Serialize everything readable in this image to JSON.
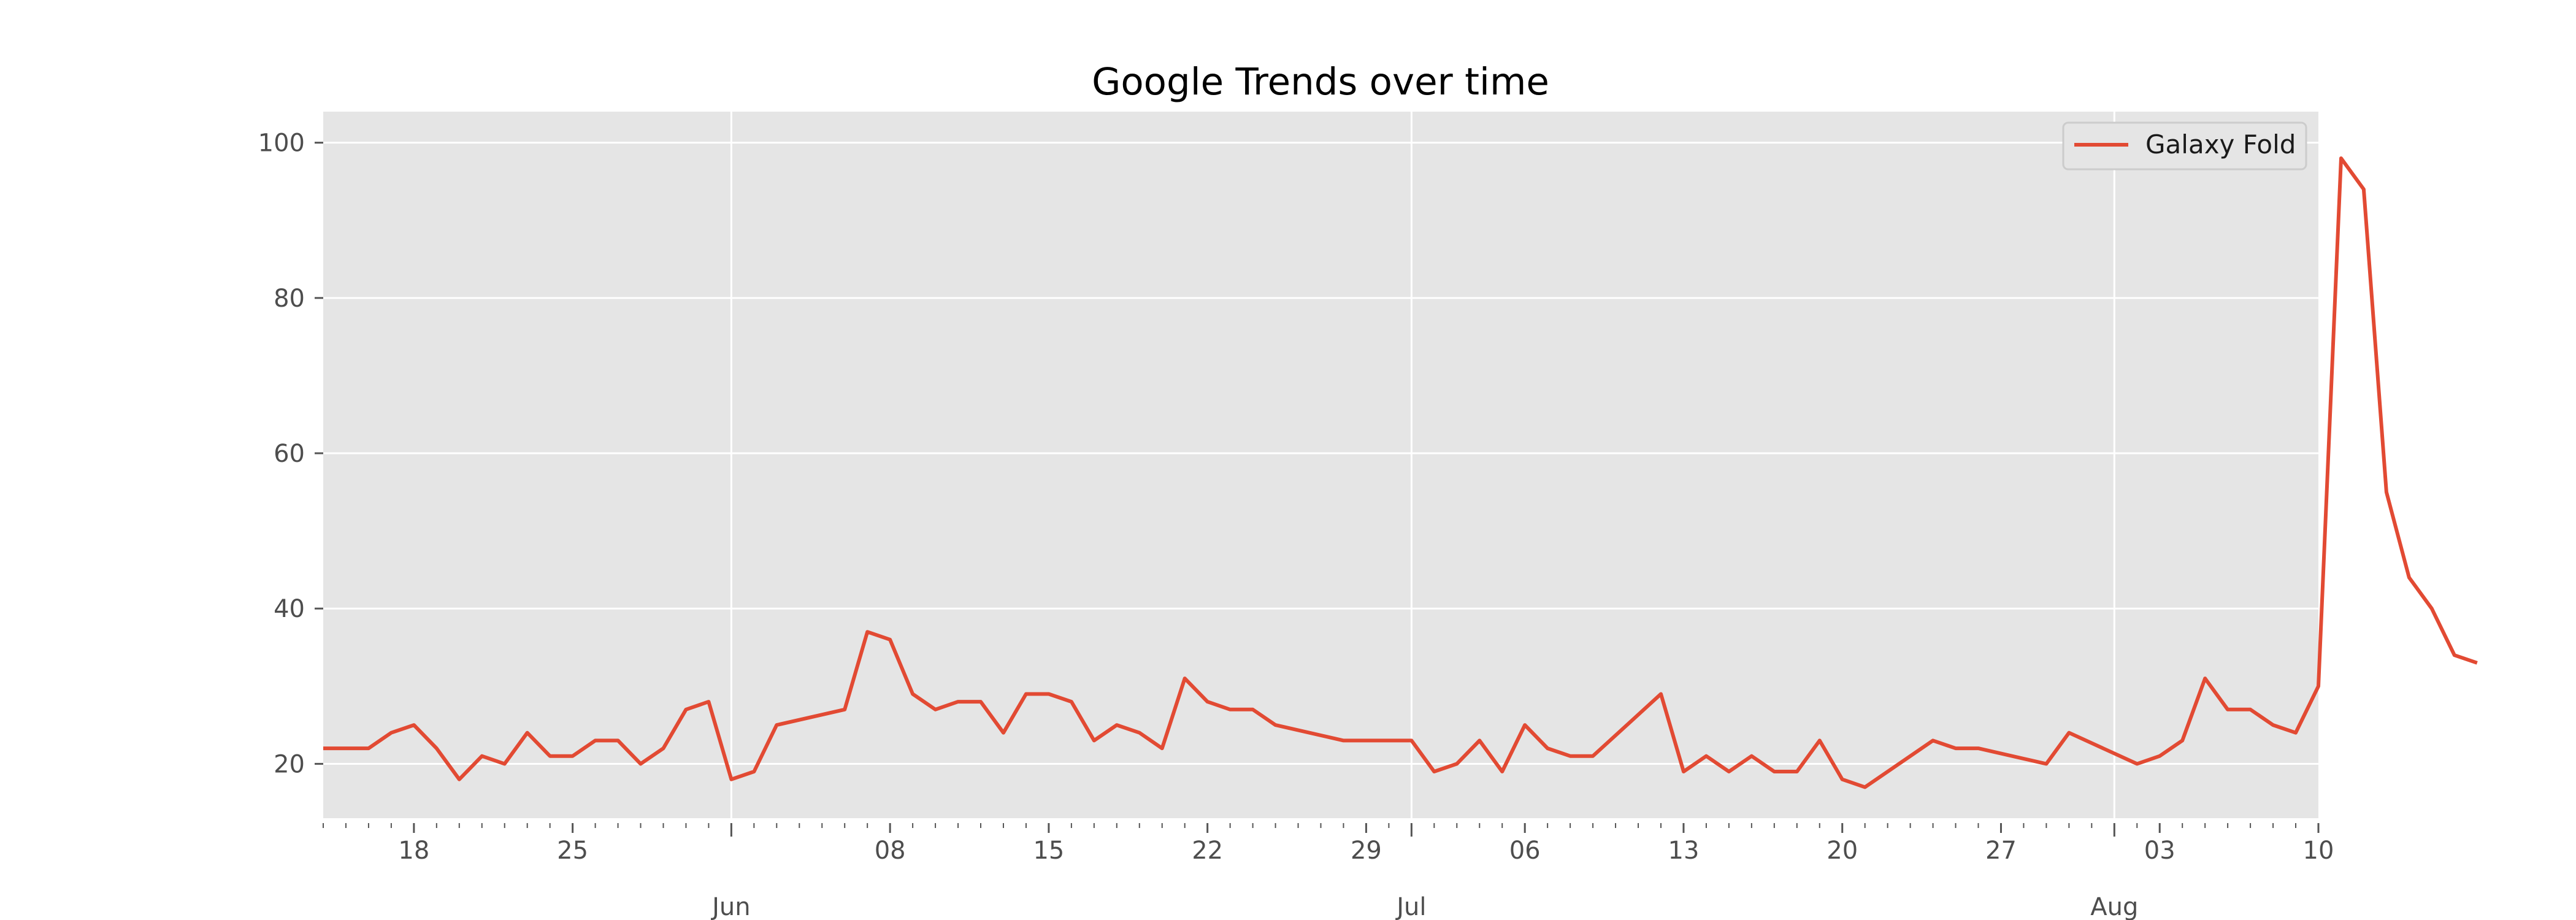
{
  "chart_data": {
    "type": "line",
    "title": "Google Trends over time",
    "xlabel": "",
    "ylabel": "",
    "x_start": "2020-05-14",
    "x_end": "2020-08-10",
    "ylim": [
      13,
      104
    ],
    "y_ticks": [
      20,
      40,
      60,
      80,
      100
    ],
    "x_minor_tick_labels": [
      {
        "date": "2020-05-18",
        "label": "18"
      },
      {
        "date": "2020-05-25",
        "label": "25"
      },
      {
        "date": "2020-06-08",
        "label": "08"
      },
      {
        "date": "2020-06-15",
        "label": "15"
      },
      {
        "date": "2020-06-22",
        "label": "22"
      },
      {
        "date": "2020-06-29",
        "label": "29"
      },
      {
        "date": "2020-07-06",
        "label": "06"
      },
      {
        "date": "2020-07-13",
        "label": "13"
      },
      {
        "date": "2020-07-20",
        "label": "20"
      },
      {
        "date": "2020-07-27",
        "label": "27"
      },
      {
        "date": "2020-08-03",
        "label": "03"
      },
      {
        "date": "2020-08-10",
        "label": "10"
      }
    ],
    "x_major_tick_labels": [
      {
        "date": "2020-06-01",
        "label": "Jun"
      },
      {
        "date": "2020-07-01",
        "label": "Jul"
      },
      {
        "date": "2020-08-01",
        "label": "Aug"
      }
    ],
    "grid": true,
    "legend_position": "top-right",
    "series": [
      {
        "name": "Galaxy Fold",
        "color": "#E24A33",
        "values": [
          22,
          22,
          22,
          24,
          25,
          22,
          18,
          21,
          20,
          24,
          21,
          21,
          23,
          23,
          20,
          22,
          27,
          28,
          18,
          19,
          25,
          null,
          null,
          27,
          37,
          36,
          29,
          27,
          28,
          28,
          24,
          29,
          29,
          28,
          23,
          25,
          24,
          22,
          31,
          28,
          27,
          27,
          25,
          null,
          null,
          23,
          23,
          23,
          23,
          19,
          20,
          23,
          19,
          25,
          22,
          21,
          21,
          null,
          null,
          29,
          19,
          21,
          19,
          21,
          19,
          19,
          23,
          18,
          17,
          null,
          null,
          23,
          22,
          22,
          null,
          null,
          20,
          24,
          null,
          null,
          20,
          21,
          23,
          31,
          27,
          27,
          25,
          24,
          30,
          98,
          94,
          55,
          44,
          40,
          34,
          33
        ]
      }
    ]
  }
}
